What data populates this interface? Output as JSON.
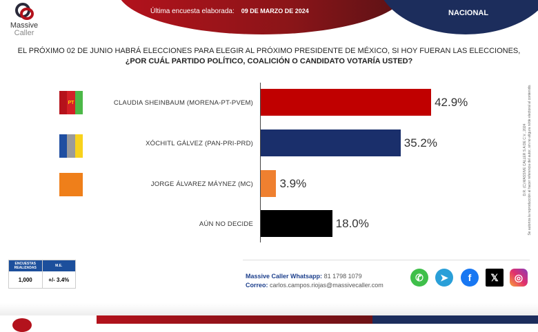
{
  "header": {
    "last_survey_label": "Última encuesta elaborada:",
    "last_survey_date": "09 DE MARZO DE 2024",
    "scope": "NACIONAL",
    "brand_line1": "Massive",
    "brand_line2": "Caller"
  },
  "question": {
    "line1": "EL PRÓXIMO 02 DE JUNIO HABRÁ ELECCIONES PARA ELEGIR AL PRÓXIMO PRESIDENTE DE MÉXICO, SI HOY FUERAN LAS ELECCIONES,",
    "line2": "¿POR CUÁL PARTIDO POLÍTICO, COALICIÓN O CANDIDATO VOTARÍA USTED?"
  },
  "chart_data": {
    "type": "bar",
    "orientation": "horizontal",
    "categories": [
      "CLAUDIA SHEINBAUM (MORENA-PT-PVEM)",
      "XÓCHITL GÁLVEZ (PAN-PRI-PRD)",
      "JORGE ÁLVAREZ MÁYNEZ (MC)",
      "AÚN NO DECIDE"
    ],
    "values": [
      42.9,
      35.2,
      3.9,
      18.0
    ],
    "labels": [
      "42.9%",
      "35.2%",
      "3.9%",
      "18.0%"
    ],
    "colors": [
      "#c00000",
      "#1a2f6b",
      "#ef8030",
      "#000000"
    ],
    "xlim": [
      0,
      50
    ],
    "title": "",
    "xlabel": "",
    "ylabel": ""
  },
  "copyright": {
    "line1": "D.R. (C) MASSIVE CALLER S.A DE C.V., 2024",
    "line2": "Se autoriza la reproducción al hacer referencia del autor, sin no afigura ni/de electoral al contenido."
  },
  "stats": {
    "h1": "ENCUESTAS REALIZADAS",
    "h2": "M.E.",
    "v1": "1,000",
    "v2": "+/- 3.4%"
  },
  "contact": {
    "wa_label": "Massive Caller Whatsapp:",
    "wa_value": "81 1798 1079",
    "mail_label": "Correo:",
    "mail_value": "carlos.campos.riojas@massivecaller.com"
  },
  "social": [
    "whatsapp-icon",
    "telegram-icon",
    "facebook-icon",
    "x-icon",
    "instagram-icon"
  ]
}
